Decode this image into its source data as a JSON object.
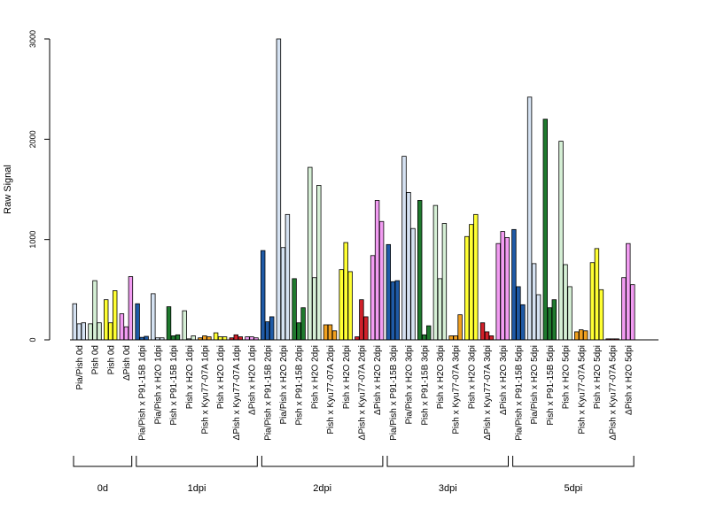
{
  "chart_data": {
    "type": "bar",
    "ylabel": "Raw Signal",
    "ylim": [
      0,
      3000
    ],
    "yticks": [
      0,
      1000,
      2000,
      3000
    ],
    "grid": false,
    "categories": [
      "Pia/Pish 0d",
      "Pish 0d",
      "Pish 0d",
      "ΔPish 0d",
      "Pia/Pish x P91-15B 1dpi",
      "Pia/Pish x H2O 1dpi",
      "Pish x P91-15B 1dpi",
      "Pish x H2O 1dpi",
      "Pish x Kyu77-07A 1dpi",
      "Pish x H2O 1dpi",
      "ΔPish x Kyu77-07A 1dpi",
      "ΔPish x H2O 1dpi",
      "Pia/Pish x P91-15B 2dpi",
      "Pia/Pish x H2O 2dpi",
      "Pish x P91-15B 2dpi",
      "Pish x H2O 2dpi",
      "Pish x Kyu77-07A 2dpi",
      "Pish x H2O 2dpi",
      "ΔPish x Kyu77-07A 2dpi",
      "ΔPish x H2O 2dpi",
      "Pia/Pish x P91-15B 3dpi",
      "Pia/Pish x H2O 3dpi",
      "Pish x P91-15B 3dpi",
      "Pish x H2O 3dpi",
      "Pish x Kyu77-07A 3dpi",
      "Pish x H2O 3dpi",
      "ΔPish x Kyu77-07A 3dpi",
      "ΔPish x H2O 3dpi",
      "Pia/Pish x P91-15B 5dpi",
      "Pia/Pish x H2O 5dpi",
      "Pish x P91-15B 5dpi",
      "Pish x H2O 5dpi",
      "Pish x Kyu77-07A 5dpi",
      "Pish x H2O 5dpi",
      "ΔPish x Kyu77-07A 5dpi",
      "ΔPish x H2O 5dpi"
    ],
    "colors": [
      "#d5e2f2",
      "#d6f0d6",
      "#ffff33",
      "#f29cf2",
      "#1f5aa6",
      "#d5e2f2",
      "#1f7a2e",
      "#d6f0d6",
      "#f0a020",
      "#ffff33",
      "#d0202a",
      "#f29cf2",
      "#1f5aa6",
      "#d5e2f2",
      "#1f7a2e",
      "#d6f0d6",
      "#f0a020",
      "#ffff33",
      "#d0202a",
      "#f29cf2",
      "#1f5aa6",
      "#d5e2f2",
      "#1f7a2e",
      "#d6f0d6",
      "#f0a020",
      "#ffff33",
      "#d0202a",
      "#f29cf2",
      "#1f5aa6",
      "#d5e2f2",
      "#1f7a2e",
      "#d6f0d6",
      "#f0a020",
      "#ffff33",
      "#d0202a",
      "#f29cf2"
    ],
    "values": [
      [
        360,
        160,
        170
      ],
      [
        160,
        590,
        170
      ],
      [
        400,
        170,
        490
      ],
      [
        260,
        130,
        630
      ],
      [
        360,
        25,
        35
      ],
      [
        460,
        20,
        20
      ],
      [
        330,
        40,
        50
      ],
      [
        290,
        10,
        40
      ],
      [
        20,
        40,
        30
      ],
      [
        70,
        30,
        30
      ],
      [
        20,
        50,
        30
      ],
      [
        30,
        30,
        20
      ],
      [
        890,
        180,
        230
      ],
      [
        3000,
        920,
        1250
      ],
      [
        610,
        170,
        320
      ],
      [
        1720,
        620,
        1540
      ],
      [
        150,
        150,
        90
      ],
      [
        700,
        970,
        680
      ],
      [
        30,
        400,
        230
      ],
      [
        840,
        1390,
        1180
      ],
      [
        950,
        580,
        590
      ],
      [
        1830,
        1470,
        1110
      ],
      [
        1390,
        50,
        140
      ],
      [
        1340,
        610,
        1160
      ],
      [
        40,
        40,
        250
      ],
      [
        1030,
        1150,
        1250
      ],
      [
        170,
        80,
        40
      ],
      [
        960,
        1080,
        1020
      ],
      [
        1100,
        530,
        350
      ],
      [
        2420,
        760,
        450
      ],
      [
        2200,
        320,
        400
      ],
      [
        1980,
        750,
        530
      ],
      [
        80,
        100,
        90
      ],
      [
        770,
        910,
        500
      ],
      [
        10,
        10,
        10
      ],
      [
        620,
        960,
        550
      ]
    ],
    "groups": [
      {
        "label": "0d",
        "start": 0,
        "end": 3
      },
      {
        "label": "1dpi",
        "start": 4,
        "end": 11
      },
      {
        "label": "2dpi",
        "start": 12,
        "end": 19
      },
      {
        "label": "3dpi",
        "start": 20,
        "end": 27
      },
      {
        "label": "5dpi",
        "start": 28,
        "end": 35
      }
    ]
  }
}
